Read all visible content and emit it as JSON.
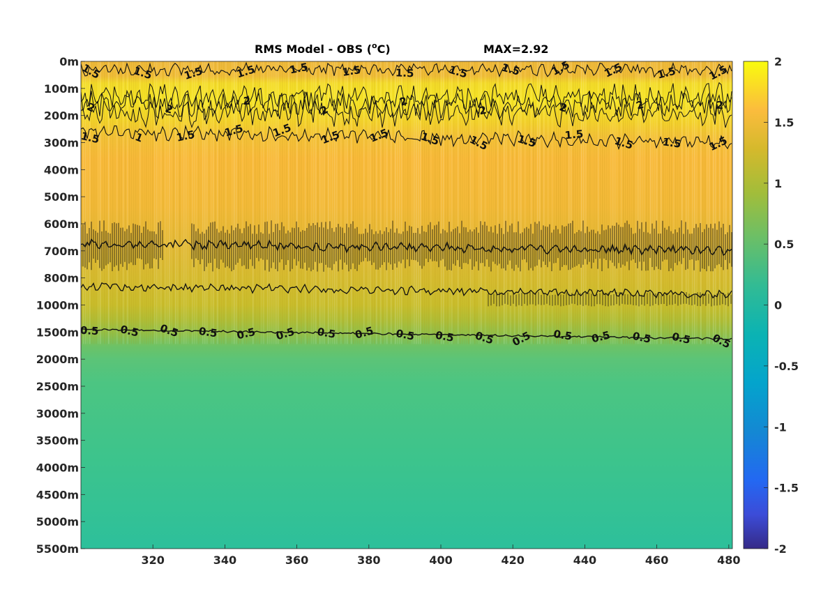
{
  "chart_data": {
    "type": "heatmap",
    "title_main": "RMS Model - OBS (",
    "title_sup": "o",
    "title_unit": "C)",
    "title_max": "MAX=2.92",
    "x": {
      "range": [
        300,
        481
      ],
      "ticks": [
        "320",
        "340",
        "360",
        "380",
        "400",
        "420",
        "440",
        "460",
        "480"
      ]
    },
    "y": {
      "ticks": [
        "0m",
        "100m",
        "200m",
        "300m",
        "400m",
        "500m",
        "600m",
        "700m",
        "800m",
        "1000m",
        "1500m",
        "2000m",
        "2500m",
        "3000m",
        "3500m",
        "4000m",
        "4500m",
        "5000m",
        "5500m"
      ],
      "direction": "reversed"
    },
    "colorbar": {
      "range": [
        -2,
        2
      ],
      "colormap": "parula",
      "ticks": [
        "2",
        "1.5",
        "1",
        "0.5",
        "0",
        "-0.5",
        "-1",
        "-1.5",
        "-2"
      ]
    },
    "depth_profile": [
      {
        "depth": "0m",
        "value": 1.55
      },
      {
        "depth": "100m",
        "value": 1.85
      },
      {
        "depth": "200m",
        "value": 1.8
      },
      {
        "depth": "300m",
        "value": 1.45
      },
      {
        "depth": "400m",
        "value": 1.4
      },
      {
        "depth": "500m",
        "value": 1.35
      },
      {
        "depth": "600m",
        "value": 1.2
      },
      {
        "depth": "700m",
        "value": 1.15
      },
      {
        "depth": "800m",
        "value": 1.1
      },
      {
        "depth": "1000m",
        "value": 0.95
      },
      {
        "depth": "1500m",
        "value": 0.55
      },
      {
        "depth": "2000m",
        "value": 0.4
      },
      {
        "depth": "5500m",
        "value": 0.28
      }
    ],
    "contours": [
      {
        "level": "1.5",
        "near_depth": "0m"
      },
      {
        "level": "2",
        "near_depth": "150m"
      },
      {
        "level": "1.5",
        "near_depth": "300m"
      },
      {
        "level": "1",
        "near_depth": "700m"
      },
      {
        "level": "1",
        "near_depth": "900m"
      },
      {
        "level": "0.5",
        "near_depth": "1500m"
      }
    ],
    "contour_labels": {
      "c15_top": [
        "1.5",
        "1.5",
        "1.5",
        "1.5",
        "1.5",
        "1.5",
        "1.5",
        "1.5",
        "1.5",
        "1.5",
        "1.5",
        "1.5",
        "1.5"
      ],
      "c2": [
        "2",
        "2",
        "2",
        "2",
        "2",
        "2",
        "2",
        "2",
        "2"
      ],
      "c15_mid": [
        "1.5",
        "1",
        "1.5",
        "1.5",
        "1.5",
        "1.5",
        "1.5",
        "1.5",
        "1.5",
        "1.5",
        "1.5",
        "1.5",
        "1.5",
        "1.5"
      ],
      "c05": [
        "0.5",
        "0.5",
        "0.5",
        "0.5",
        "0.5",
        "0.5",
        "0.5",
        "0.5",
        "0.5",
        "0.5",
        "0.5",
        "0.5",
        "0.5",
        "0.5",
        "0.5",
        "0.5",
        "0.5"
      ]
    },
    "grid": false,
    "legend": "none"
  }
}
